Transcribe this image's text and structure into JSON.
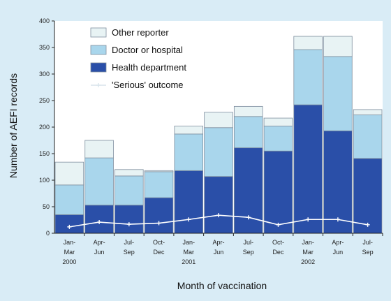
{
  "colors": {
    "background": "#d9ecf6",
    "plot_background": "#ffffff",
    "health_department": "#2a4fa8",
    "doctor_or_hospital": "#a9d6ec",
    "other_reporter": "#e8f3f4",
    "serious_line": "#ffffff"
  },
  "chart_data": {
    "type": "bar",
    "stacked": true,
    "title": "",
    "xlabel": "Month of vaccination",
    "ylabel": "Number of AEFI records",
    "ylim": [
      0,
      400
    ],
    "yticks": [
      0,
      50,
      100,
      150,
      200,
      250,
      300,
      350,
      400
    ],
    "grid": false,
    "legend_position": "top-left",
    "categories": [
      [
        "Jan-",
        "Mar",
        "2000"
      ],
      [
        "Apr-",
        "Jun",
        ""
      ],
      [
        "Jul-",
        "Sep",
        ""
      ],
      [
        "Oct-",
        "Dec",
        ""
      ],
      [
        "Jan-",
        "Mar",
        "2001"
      ],
      [
        "Apr-",
        "Jun",
        ""
      ],
      [
        "Jul-",
        "Sep",
        ""
      ],
      [
        "Oct-",
        "Dec",
        ""
      ],
      [
        "Jan-",
        "Mar",
        "2002"
      ],
      [
        "Apr-",
        "Jun",
        ""
      ],
      [
        "Jul-",
        "Sep",
        ""
      ]
    ],
    "series": [
      {
        "name": "Health department",
        "values": [
          35,
          53,
          53,
          67,
          118,
          107,
          161,
          155,
          242,
          193,
          141
        ]
      },
      {
        "name": "Doctor or hospital",
        "values": [
          56,
          89,
          55,
          49,
          69,
          92,
          59,
          47,
          104,
          140,
          82
        ]
      },
      {
        "name": "Other reporter",
        "values": [
          43,
          33,
          12,
          2,
          15,
          29,
          19,
          15,
          25,
          38,
          10
        ]
      }
    ],
    "line_series": {
      "name": "'Serious' outcome",
      "values": [
        12,
        21,
        17,
        19,
        26,
        34,
        30,
        16,
        26,
        26,
        16
      ]
    },
    "legend": [
      "Other reporter",
      "Doctor or hospital",
      "Health department",
      "'Serious' outcome"
    ]
  }
}
